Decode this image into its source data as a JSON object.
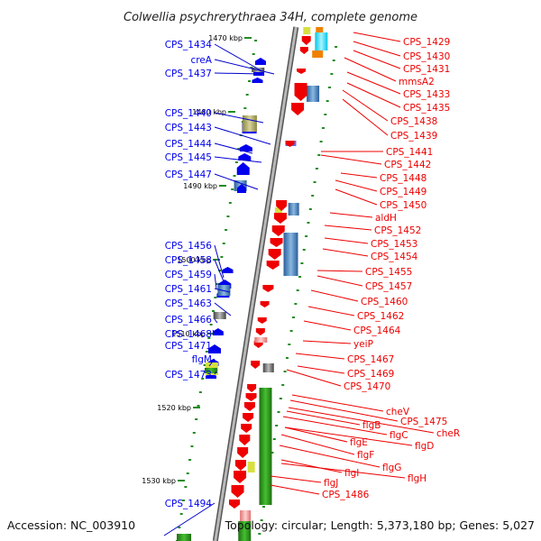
{
  "title": "Colwellia psychrerythraea 34H, complete genome",
  "footer": {
    "accession": "Accession: NC_003910",
    "summary": "Topology: circular; Length: 5,373,180 bp; Genes: 5,027"
  },
  "colors": {
    "plus_strand": "#0000ee",
    "minus_strand": "#ee0000",
    "backbone": "#888888",
    "tick": "#228b22"
  },
  "kbp_ticks": [
    "1470 kbp",
    "1480 kbp",
    "1490 kbp",
    "1500 kbp",
    "1510 kbp",
    "1520 kbp",
    "1530 kbp"
  ],
  "left_genes": [
    "CPS_1434",
    "creA",
    "CPS_1437",
    "CPS_1440",
    "CPS_1443",
    "CPS_1444",
    "CPS_1445",
    "CPS_1447",
    "CPS_1456",
    "CPS_1458",
    "CPS_1459",
    "CPS_1461",
    "CPS_1463",
    "CPS_1466",
    "CPS_1468",
    "CPS_1471",
    "flgM",
    "CPS_1473",
    "CPS_1494"
  ],
  "right_genes": [
    "CPS_1429",
    "CPS_1430",
    "CPS_1431",
    "mmsA2",
    "CPS_1433",
    "CPS_1435",
    "CPS_1438",
    "CPS_1439",
    "CPS_1441",
    "CPS_1442",
    "CPS_1448",
    "CPS_1449",
    "CPS_1450",
    "aldH",
    "CPS_1452",
    "CPS_1453",
    "CPS_1454",
    "CPS_1455",
    "CPS_1457",
    "CPS_1460",
    "CPS_1462",
    "CPS_1464",
    "yeiP",
    "CPS_1467",
    "CPS_1469",
    "CPS_1470",
    "cheV",
    "CPS_1475",
    "cheR",
    "flgB",
    "flgC",
    "flgD",
    "flgE",
    "flgF",
    "flgG",
    "flgI",
    "flgH",
    "flgJ",
    "CPS_1486"
  ]
}
